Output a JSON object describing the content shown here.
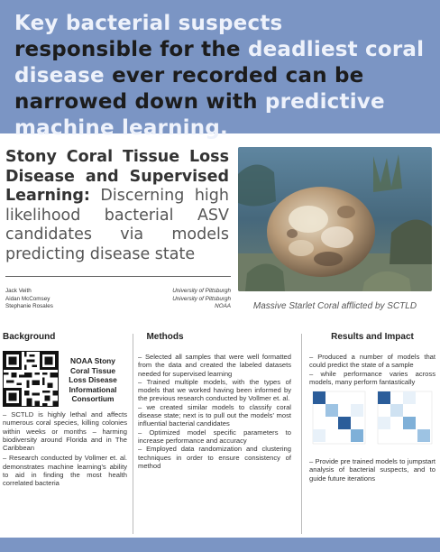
{
  "banner": {
    "seg1": "Key bacterial suspects",
    "seg2": " responsible for the ",
    "seg3": "deadliest coral disease",
    "seg4": " ever recorded can be narrowed down with ",
    "seg5": "predictive machine learning."
  },
  "title": {
    "bold": "Stony Coral Tissue Loss Disease and Supervised Learning:",
    "light": " Discerning high likelihood bacterial ASV candidates via models predicting disease state"
  },
  "authors": [
    {
      "name": "Jack Veith",
      "affiliation": "University of Pittsburgh"
    },
    {
      "name": "Aidan McComsey",
      "affiliation": "University of Pittsburgh"
    },
    {
      "name": "Stephanie Rosales",
      "affiliation": "NOAA"
    }
  ],
  "photo": {
    "caption": "Massive Starlet Coral afflicted by SCTLD"
  },
  "background": {
    "heading": "Background",
    "qr_label": "NOAA Stony Coral Tissue Loss Disease Informational Consortium",
    "bullets": [
      "– SCTLD is highly lethal and affects numerous coral species, killing colonies within weeks or months – harming biodiversity around Florida and in The Caribbean",
      "– Research conducted by Vollmer et. al. demonstrates machine learning's ability to aid in finding the most health correlated bacteria"
    ]
  },
  "methods": {
    "heading": "Methods",
    "bullets": [
      "– Selected all samples that were well formatted from the data and created the labeled datasets needed for supervised learning",
      "– Trained multiple models, with the types of models that we worked having been informed by the previous research conducted by Vollmer et. al.",
      "– we created similar models to classify coral disease state; next is to pull out the models' most influential bacterial candidates",
      "– Optimized model specific parameters to increase performance and accuracy",
      "– Employed data randomization and clustering techniques in order to ensure consistency of method"
    ]
  },
  "results": {
    "heading": "Results and Impact",
    "bullets_top": [
      "– Produced a number of models that could predict the state of a sample",
      "– while performance varies across models, many perform fantastically"
    ],
    "bullets_bottom": [
      "– Provide pre trained models to jumpstart analysis of bacterial suspects, and to guide future iterations"
    ]
  },
  "colors": {
    "accent": "#7b95c4",
    "heat_dark": "#2b5d9a",
    "heat_mid": "#7fb0d8",
    "heat_light": "#cfe2f2"
  }
}
